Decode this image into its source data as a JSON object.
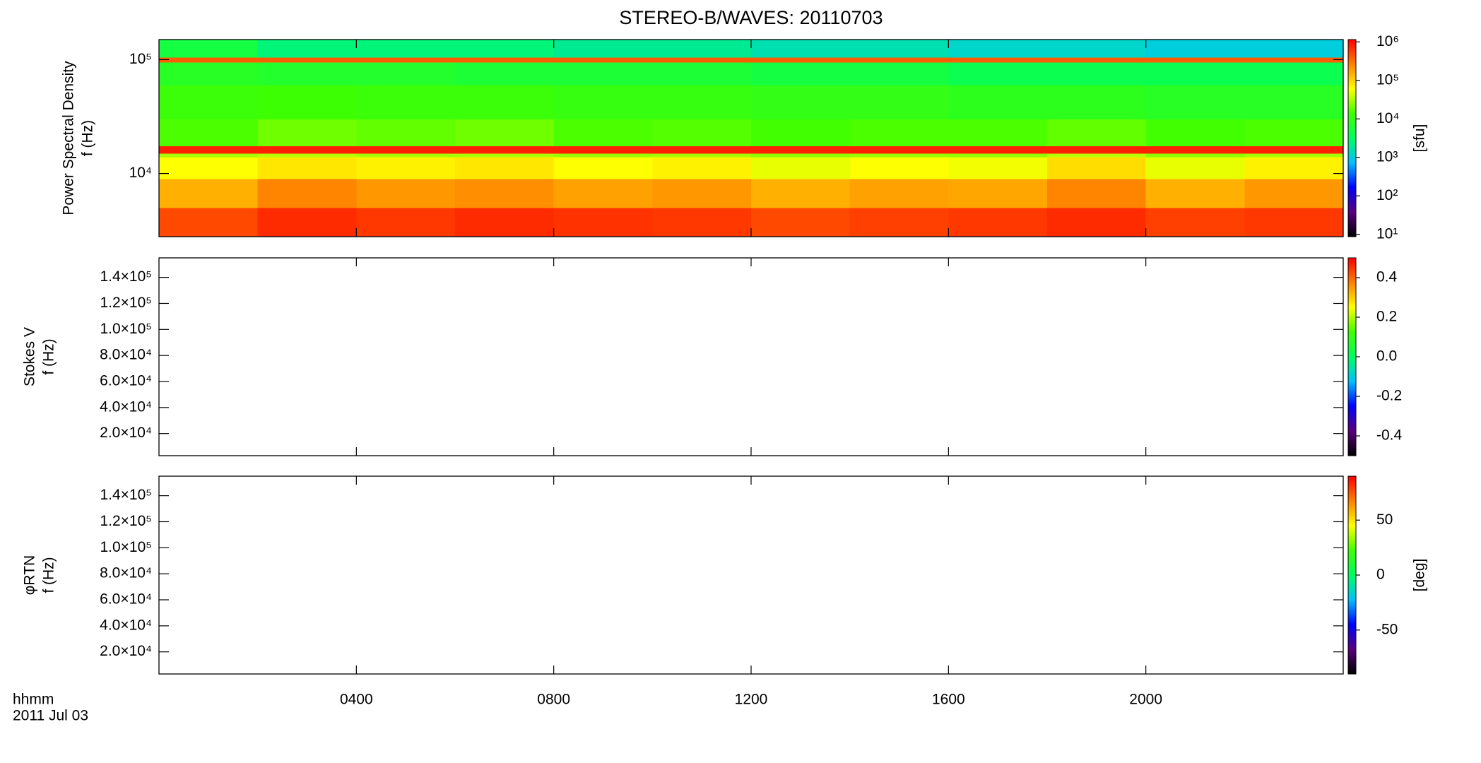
{
  "chart_data": [
    {
      "type": "heatmap",
      "title": "STEREO-B/WAVES: 20110703",
      "ylabel": [
        "Power Spectral Density",
        "f (Hz)"
      ],
      "log_y": true,
      "ylim": [
        2790,
        150000
      ],
      "yticks": [
        {
          "value": 10000,
          "label": "10⁴"
        },
        {
          "value": 100000,
          "label": "10⁵"
        }
      ],
      "x_edges": [
        0,
        2,
        4,
        6,
        8,
        10,
        12,
        14,
        16,
        18,
        20,
        22,
        24
      ],
      "y_edges": [
        2790,
        5000,
        9000,
        14000,
        15000,
        17500,
        30000,
        60000,
        95000,
        105000,
        150000
      ],
      "values": [
        [
          500000,
          700000,
          600000,
          700000,
          650000,
          600000,
          500000,
          550000,
          600000,
          700000,
          550000,
          600000
        ],
        [
          150000,
          250000,
          200000,
          220000,
          180000,
          200000,
          150000,
          180000,
          170000,
          250000,
          150000,
          200000
        ],
        [
          60000,
          80000,
          70000,
          80000,
          60000,
          70000,
          50000,
          60000,
          55000,
          90000,
          50000,
          70000
        ],
        [
          30000,
          35000,
          30000,
          32000,
          28000,
          30000,
          25000,
          27000,
          26000,
          35000,
          25000,
          30000
        ],
        [
          800000,
          800000,
          800000,
          800000,
          800000,
          800000,
          800000,
          800000,
          800000,
          800000,
          800000,
          800000
        ],
        [
          15000,
          20000,
          18000,
          20000,
          15000,
          16000,
          14000,
          15000,
          15000,
          18000,
          14000,
          15000
        ],
        [
          12000,
          13000,
          12000,
          12000,
          11000,
          11000,
          10000,
          10000,
          9000,
          9000,
          8000,
          8000
        ],
        [
          8000,
          7000,
          7000,
          6000,
          6000,
          6000,
          5000,
          5000,
          4000,
          4000,
          4000,
          4000
        ],
        [
          400000,
          400000,
          400000,
          400000,
          400000,
          400000,
          400000,
          400000,
          400000,
          400000,
          400000,
          400000
        ],
        [
          5000,
          2500,
          2500,
          2500,
          2000,
          2000,
          1500,
          1500,
          1200,
          1200,
          1000,
          1000
        ]
      ],
      "colormap": [
        "#000000",
        "#5a0080",
        "#0000ff",
        "#00c0ff",
        "#00ff60",
        "#40ff00",
        "#ffff00",
        "#ff8000",
        "#ff0000"
      ],
      "colorbar": {
        "label": "[sfu]",
        "log": true,
        "clim": [
          8.7,
          1150000
        ],
        "ticks": [
          {
            "value": 10,
            "label": "10¹"
          },
          {
            "value": 100,
            "label": "10²"
          },
          {
            "value": 1000,
            "label": "10³"
          },
          {
            "value": 10000,
            "label": "10⁴"
          },
          {
            "value": 100000,
            "label": "10⁵"
          },
          {
            "value": 1000000,
            "label": "10⁶"
          }
        ]
      }
    },
    {
      "type": "heatmap",
      "ylabel": [
        "Stokes V",
        "f (Hz)"
      ],
      "log_y": false,
      "ylim": [
        3000,
        155000
      ],
      "yticks": [
        {
          "value": 20000,
          "label": "2.0×10⁴"
        },
        {
          "value": 40000,
          "label": "4.0×10⁴"
        },
        {
          "value": 60000,
          "label": "6.0×10⁴"
        },
        {
          "value": 80000,
          "label": "8.0×10⁴"
        },
        {
          "value": 100000,
          "label": "1.0×10⁵"
        },
        {
          "value": 120000,
          "label": "1.2×10⁵"
        },
        {
          "value": 140000,
          "label": "1.4×10⁵"
        }
      ],
      "colormap": [
        "#000000",
        "#5a0080",
        "#0000ff",
        "#00c0ff",
        "#00ff60",
        "#40ff00",
        "#ffff00",
        "#ff8000",
        "#ff0000"
      ],
      "colorbar": {
        "log": false,
        "clim": [
          -0.5,
          0.5
        ],
        "ticks": [
          {
            "value": -0.4,
            "label": "-0.4"
          },
          {
            "value": -0.2,
            "label": "-0.2"
          },
          {
            "value": 0,
            "label": "0.0"
          },
          {
            "value": 0.2,
            "label": "0.2"
          },
          {
            "value": 0.4,
            "label": "0.4"
          }
        ]
      }
    },
    {
      "type": "heatmap",
      "ylabel": [
        "φRTN",
        "f (Hz)"
      ],
      "log_y": false,
      "ylim": [
        3000,
        155000
      ],
      "yticks": [
        {
          "value": 20000,
          "label": "2.0×10⁴"
        },
        {
          "value": 40000,
          "label": "4.0×10⁴"
        },
        {
          "value": 60000,
          "label": "6.0×10⁴"
        },
        {
          "value": 80000,
          "label": "8.0×10⁴"
        },
        {
          "value": 100000,
          "label": "1.0×10⁵"
        },
        {
          "value": 120000,
          "label": "1.2×10⁵"
        },
        {
          "value": 140000,
          "label": "1.4×10⁵"
        }
      ],
      "xlim": [
        0,
        24
      ],
      "xticks": [
        {
          "value": 4,
          "label": "0400"
        },
        {
          "value": 8,
          "label": "0800"
        },
        {
          "value": 12,
          "label": "1200"
        },
        {
          "value": 16,
          "label": "1600"
        },
        {
          "value": 20,
          "label": "2000"
        }
      ],
      "xlabel": [
        "hhmm",
        "2011 Jul 03"
      ],
      "colormap": [
        "#000000",
        "#5a0080",
        "#0000ff",
        "#00c0ff",
        "#00ff60",
        "#40ff00",
        "#ffff00",
        "#ff8000",
        "#ff0000"
      ],
      "colorbar": {
        "label": "[deg]",
        "log": false,
        "clim": [
          -90,
          90
        ],
        "ticks": [
          {
            "value": -50,
            "label": "-50"
          },
          {
            "value": 0,
            "label": "0"
          },
          {
            "value": 50,
            "label": "50"
          }
        ]
      }
    }
  ]
}
